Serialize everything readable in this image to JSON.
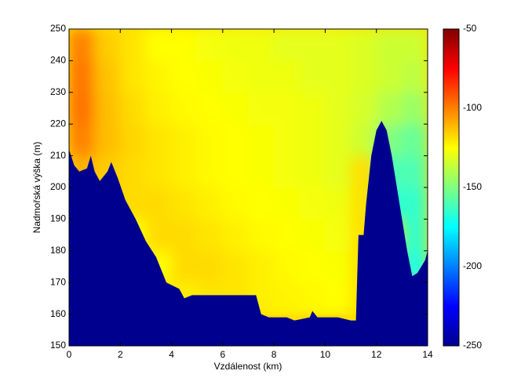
{
  "chart_data": {
    "type": "heatmap",
    "xlabel": "Vzdálenost (km)",
    "ylabel": "Nadmořská výška (m)",
    "xlim": [
      0,
      14
    ],
    "xticks": [
      0,
      2,
      4,
      6,
      8,
      10,
      12,
      14
    ],
    "ylim": [
      150,
      250
    ],
    "yticks": [
      150,
      160,
      170,
      180,
      190,
      200,
      210,
      220,
      230,
      240,
      250
    ],
    "x": [
      0.5,
      1.5,
      2.5,
      3.5,
      4.5,
      5.5,
      6.5,
      7.5,
      8.5,
      9.5,
      10.5,
      11.5,
      12.5,
      13.5
    ],
    "y": [
      155,
      165,
      175,
      185,
      195,
      205,
      215,
      225,
      235,
      245
    ],
    "values": [
      [
        null,
        null,
        null,
        null,
        null,
        null,
        null,
        null,
        null,
        null,
        null,
        null,
        null,
        null
      ],
      [
        null,
        null,
        null,
        null,
        -122,
        -120,
        -120,
        -122,
        -123,
        -124,
        -125,
        null,
        null,
        null
      ],
      [
        null,
        null,
        null,
        -125,
        -118,
        -118,
        -120,
        -122,
        -124,
        -125,
        -126,
        null,
        null,
        -170
      ],
      [
        null,
        null,
        -125,
        -118,
        -118,
        -120,
        -122,
        -124,
        -125,
        -126,
        -127,
        null,
        null,
        -165
      ],
      [
        null,
        null,
        -118,
        -118,
        -120,
        -122,
        -124,
        -125,
        -126,
        -127,
        -128,
        null,
        -165,
        -165
      ],
      [
        -110,
        -115,
        -118,
        -120,
        -122,
        -124,
        -125,
        -126,
        -127,
        -128,
        -130,
        null,
        -160,
        -160
      ],
      [
        -100,
        -112,
        -117,
        -120,
        -122,
        -124,
        -125,
        -126,
        -127,
        -128,
        -130,
        -135,
        -150,
        -155
      ],
      [
        -97,
        -112,
        -118,
        -122,
        -124,
        -125,
        -126,
        -127,
        -127,
        -128,
        -130,
        -133,
        -140,
        -145
      ],
      [
        -98,
        -113,
        -120,
        -123,
        -125,
        -126,
        -127,
        -128,
        -128,
        -130,
        -130,
        -132,
        -135,
        -138
      ],
      [
        -100,
        -115,
        -120,
        -125,
        -125,
        -127,
        -128,
        -128,
        -130,
        -130,
        -130,
        -132,
        -135,
        -135
      ]
    ],
    "colorbar": {
      "clim": [
        -250,
        -50
      ],
      "ticks": [
        -250,
        -200,
        -150,
        -100,
        -50
      ]
    },
    "terrain": {
      "color": "#00008f",
      "x": [
        0,
        0.2,
        0.4,
        0.7,
        0.85,
        1.0,
        1.2,
        1.5,
        1.65,
        1.9,
        2.2,
        2.6,
        3.0,
        3.4,
        3.8,
        4.3,
        4.5,
        4.8,
        5.0,
        6.5,
        7.3,
        7.5,
        7.8,
        8.5,
        8.8,
        9.4,
        9.5,
        9.7,
        10.5,
        11.0,
        11.2,
        11.3,
        11.5,
        11.6,
        11.8,
        12.0,
        12.2,
        12.4,
        12.6,
        12.9,
        13.2,
        13.4,
        13.6,
        13.9,
        14.0
      ],
      "values": [
        212,
        207,
        205,
        206,
        210,
        205,
        202,
        205,
        208,
        203,
        196,
        190,
        183,
        178,
        170,
        168,
        165,
        166,
        166,
        166,
        166,
        160,
        159,
        159,
        158,
        159,
        161,
        159,
        159,
        158,
        158,
        185,
        185,
        195,
        210,
        218,
        221,
        218,
        210,
        195,
        180,
        172,
        173,
        177,
        180
      ]
    }
  }
}
